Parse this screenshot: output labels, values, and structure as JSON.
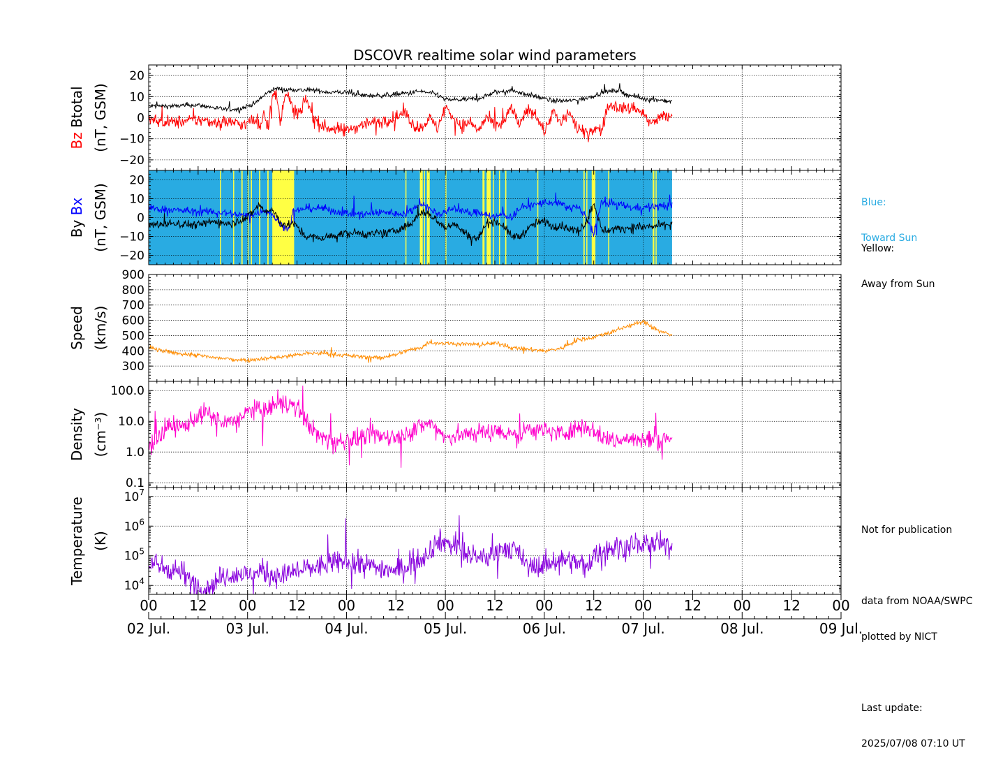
{
  "chart_data": {
    "type": "line",
    "title": "DSCOVR realtime solar wind parameters",
    "x": {
      "unit": "hours since 2025-07-02 00:00 UT",
      "range": [
        0,
        168
      ],
      "data_end": 127,
      "major_tick_labels": [
        "00",
        "12",
        "00",
        "12",
        "00",
        "12",
        "00",
        "12",
        "00",
        "12",
        "00",
        "12",
        "00",
        "12",
        "00"
      ],
      "date_labels": [
        "02 Jul.",
        "03 Jul.",
        "04 Jul.",
        "05 Jul.",
        "06 Jul.",
        "07 Jul.",
        "08 Jul.",
        "09 Jul."
      ]
    },
    "panels": [
      {
        "id": "bfield",
        "ylabel_series": [
          {
            "text": "Bz",
            "color": "#ff0000"
          },
          {
            "text": "Btotal",
            "color": "#000000"
          }
        ],
        "ylabel_unit": "(nT, GSM)",
        "scale": "linear",
        "ylim": [
          -25,
          25
        ],
        "ticks": [
          "20",
          "10",
          "0",
          "−10",
          "−20"
        ],
        "tick_values": [
          20,
          10,
          0,
          -10,
          -20
        ],
        "series": [
          {
            "name": "Btotal",
            "color": "#000000",
            "t": [
              0,
              6,
              12,
              18,
              22,
              24,
              26,
              27,
              29,
              31,
              33,
              35,
              37,
              40,
              44,
              48,
              52,
              56,
              60,
              64,
              66,
              70,
              72,
              74,
              76,
              80,
              84,
              88,
              92,
              96,
              98,
              102,
              106,
              110,
              114,
              116,
              118,
              120,
              122,
              124,
              127
            ],
            "v": [
              5.5,
              5.5,
              6,
              4,
              4,
              5.5,
              7,
              9,
              12,
              14,
              13,
              13.5,
              13,
              13,
              12,
              12,
              10.5,
              10.5,
              11,
              12,
              12.5,
              11,
              8.5,
              8.5,
              8.5,
              9,
              12,
              13,
              11,
              9,
              8,
              8,
              9,
              12,
              13,
              11,
              10,
              9,
              8.5,
              8.5,
              7.5
            ],
            "noise": 0.8
          },
          {
            "name": "Bz",
            "color": "#ff0000",
            "t": [
              0,
              4,
              8,
              12,
              16,
              20,
              22,
              24,
              25,
              26,
              27,
              28,
              29,
              30,
              31,
              32,
              33,
              34,
              35,
              36,
              37,
              38,
              40,
              42,
              44,
              48,
              52,
              56,
              60,
              62,
              64,
              66,
              68,
              70,
              72,
              74,
              76,
              78,
              80,
              82,
              84,
              86,
              88,
              90,
              92,
              94,
              96,
              98,
              100,
              102,
              104,
              106,
              108,
              110,
              111,
              112,
              114,
              116,
              118,
              120,
              122,
              124,
              127
            ],
            "v": [
              -1,
              -2,
              -2,
              -1,
              -2,
              -2,
              -3,
              -3,
              -1,
              -2,
              -4,
              3,
              -5,
              12,
              10,
              -3,
              12,
              10,
              3,
              3,
              2,
              10,
              0,
              -4,
              -5,
              -6,
              -3,
              -2,
              0,
              3,
              -3,
              -5,
              0,
              -5,
              5,
              0,
              -4,
              -2,
              -6,
              0,
              -4,
              -3,
              5,
              -4,
              4,
              2,
              -7,
              3,
              -3,
              3,
              -5,
              -8,
              -5,
              -6,
              3,
              6,
              5,
              4,
              5,
              2,
              -3,
              0,
              1
            ],
            "noise": 2.2
          }
        ]
      },
      {
        "id": "bxy",
        "ylabel_series": [
          {
            "text": "By",
            "color": "#000000"
          },
          {
            "text": "Bx",
            "color": "#0000ff"
          }
        ],
        "ylabel_unit": "(nT, GSM)",
        "scale": "linear",
        "ylim": [
          -25,
          25
        ],
        "ticks": [
          "20",
          "10",
          "0",
          "−10",
          "−20"
        ],
        "tick_values": [
          20,
          10,
          0,
          -10,
          -20
        ],
        "sector_background": {
          "toward_color": "#29abe2",
          "away_color": "#ffff44",
          "away_intervals": [
            [
              17.3,
              17.5
            ],
            [
              20.5,
              20.7
            ],
            [
              22.5,
              22.8
            ],
            [
              24.0,
              24.2
            ],
            [
              24.8,
              25.0
            ],
            [
              26.8,
              27.1
            ],
            [
              28.8,
              29.1
            ],
            [
              30.0,
              35.3
            ],
            [
              62.3,
              62.5
            ],
            [
              65.8,
              66.5
            ],
            [
              66.8,
              67.0
            ],
            [
              67.5,
              68.2
            ],
            [
              72.0,
              72.2
            ],
            [
              81.0,
              81.5
            ],
            [
              82.0,
              83.0
            ],
            [
              83.5,
              83.7
            ],
            [
              85.0,
              85.2
            ],
            [
              86.5,
              86.8
            ],
            [
              94.3,
              94.5
            ],
            [
              105.5,
              105.8
            ],
            [
              106.2,
              106.4
            ],
            [
              107.5,
              108.4
            ],
            [
              111.5,
              111.7
            ],
            [
              122.3,
              122.7
            ],
            [
              123.0,
              123.2
            ]
          ]
        },
        "series": [
          {
            "name": "Bx",
            "color": "#0000ff",
            "t": [
              0,
              6,
              12,
              16,
              20,
              24,
              26,
              28,
              30,
              32,
              34,
              35,
              38,
              42,
              46,
              50,
              54,
              58,
              60,
              62,
              64,
              66,
              68,
              70,
              72,
              74,
              76,
              78,
              80,
              82,
              84,
              86,
              88,
              90,
              92,
              94,
              96,
              98,
              100,
              102,
              104,
              106,
              108,
              110,
              114,
              118,
              122,
              127
            ],
            "v": [
              5,
              4,
              3,
              3,
              2,
              1,
              2,
              4,
              2,
              -4,
              -6,
              3,
              5,
              5,
              3,
              2,
              2,
              3,
              2,
              2,
              4,
              8,
              5,
              2,
              3,
              5,
              4,
              2,
              3,
              2,
              0,
              2,
              0,
              5,
              6,
              7,
              8,
              8,
              7,
              5,
              6,
              0,
              -8,
              8,
              7,
              5,
              6,
              6
            ],
            "noise": 1.5
          },
          {
            "name": "By",
            "color": "#000000",
            "t": [
              0,
              6,
              12,
              16,
              20,
              24,
              26,
              27,
              28,
              30,
              32,
              34,
              35,
              36,
              38,
              42,
              46,
              50,
              54,
              58,
              60,
              62,
              64,
              66,
              68,
              70,
              72,
              74,
              76,
              78,
              80,
              82,
              84,
              86,
              88,
              90,
              92,
              94,
              96,
              98,
              100,
              102,
              104,
              106,
              108,
              110,
              114,
              118,
              122,
              127
            ],
            "v": [
              -4,
              -3,
              -4,
              -2,
              -3,
              0,
              5,
              7,
              3,
              4,
              -3,
              -4,
              -3,
              -5,
              -10,
              -11,
              -9,
              -8,
              -9,
              -8,
              -7,
              -5,
              -3,
              3,
              2,
              -2,
              -5,
              -3,
              -7,
              -10,
              -11,
              -3,
              -2,
              -4,
              -10,
              -10,
              -6,
              -3,
              -2,
              -5,
              -4,
              -6,
              -7,
              -3,
              8,
              -7,
              -6,
              -5,
              -5,
              -3
            ],
            "noise": 1.6
          }
        ],
        "legend_notes": [
          {
            "label": "Blue:",
            "text": "Toward Sun",
            "color": "#29abe2"
          },
          {
            "label": "Yellow:",
            "text": "Away from Sun",
            "color": "#000000"
          }
        ]
      },
      {
        "id": "speed",
        "ylabel_series": [
          {
            "text": "Speed",
            "color": "#000000"
          }
        ],
        "ylabel_unit": "(km/s)",
        "scale": "linear",
        "ylim": [
          200,
          900
        ],
        "ticks": [
          "900",
          "800",
          "700",
          "600",
          "500",
          "400",
          "300"
        ],
        "tick_values": [
          900,
          800,
          700,
          600,
          500,
          400,
          300
        ],
        "series": [
          {
            "name": "Speed",
            "color": "#ff8c00",
            "t": [
              0,
              4,
              8,
              12,
              16,
              20,
              24,
              28,
              32,
              36,
              40,
              44,
              48,
              52,
              56,
              60,
              62,
              64,
              66,
              68,
              72,
              76,
              80,
              84,
              86,
              88,
              92,
              96,
              100,
              104,
              108,
              112,
              116,
              118,
              120,
              122,
              124,
              127
            ],
            "v": [
              420,
              395,
              380,
              370,
              355,
              345,
              340,
              350,
              360,
              375,
              385,
              380,
              370,
              360,
              355,
              375,
              395,
              410,
              420,
              455,
              450,
              445,
              440,
              450,
              440,
              420,
              410,
              400,
              415,
              470,
              490,
              520,
              560,
              575,
              590,
              560,
              530,
              500
            ],
            "noise": 10
          }
        ]
      },
      {
        "id": "density",
        "ylabel_series": [
          {
            "text": "Density",
            "color": "#000000"
          }
        ],
        "ylabel_unit": "(cm⁻³)",
        "scale": "log",
        "ylim": [
          0.07,
          200
        ],
        "ticks": [
          "100.0",
          "10.0",
          "1.0",
          "0.1"
        ],
        "tick_values": [
          100,
          10,
          1,
          0.1
        ],
        "series": [
          {
            "name": "Density",
            "color": "#ff00cc",
            "t": [
              0,
              2,
              4,
              6,
              8,
              10,
              12,
              14,
              16,
              18,
              20,
              22,
              24,
              26,
              28,
              30,
              32,
              34,
              36,
              38,
              40,
              42,
              44,
              46,
              48,
              52,
              56,
              60,
              64,
              66,
              68,
              70,
              72,
              76,
              80,
              84,
              88,
              90,
              92,
              96,
              100,
              104,
              106,
              108,
              110,
              112,
              116,
              120,
              124,
              127
            ],
            "v": [
              1.5,
              3,
              5,
              8,
              6,
              10,
              15,
              20,
              12,
              8,
              10,
              12,
              20,
              25,
              20,
              30,
              40,
              35,
              25,
              12,
              5,
              3,
              2.5,
              2,
              2.5,
              3,
              3.5,
              3,
              5,
              7,
              8,
              6,
              3,
              3.5,
              4.5,
              4.5,
              4.5,
              3,
              6,
              5,
              4,
              6,
              7,
              5,
              3,
              2.5,
              2.5,
              2.5,
              2.5,
              3
            ],
            "noise": 0.22
          }
        ]
      },
      {
        "id": "temperature",
        "ylabel_series": [
          {
            "text": "Temperature",
            "color": "#000000"
          }
        ],
        "ylabel_unit": "(K)",
        "scale": "log",
        "ylim": [
          5000,
          20000000
        ],
        "ticks": [
          "10^7",
          "10^6",
          "10^5",
          "10^4"
        ],
        "tick_values": [
          10000000,
          1000000,
          100000,
          10000
        ],
        "series": [
          {
            "name": "Temperature",
            "color": "#8800dd",
            "t": [
              0,
              4,
              8,
              10,
              12,
              14,
              16,
              18,
              20,
              24,
              28,
              32,
              36,
              40,
              44,
              48,
              52,
              56,
              60,
              62,
              64,
              66,
              68,
              70,
              72,
              76,
              80,
              84,
              86,
              88,
              90,
              92,
              96,
              100,
              104,
              106,
              108,
              112,
              116,
              120,
              124,
              127
            ],
            "v": [
              50000,
              40000,
              30000,
              15000,
              10000,
              8000,
              12000,
              20000,
              25000,
              22000,
              30000,
              20000,
              30000,
              40000,
              50000,
              70000,
              50000,
              40000,
              30000,
              40000,
              60000,
              80000,
              150000,
              300000,
              300000,
              150000,
              70000,
              120000,
              200000,
              180000,
              100000,
              40000,
              50000,
              80000,
              60000,
              40000,
              100000,
              200000,
              200000,
              250000,
              250000,
              160000
            ],
            "noise": 0.28
          }
        ]
      }
    ]
  },
  "notes": {
    "not_for_publication": "Not for publication",
    "data_source_1": "data from NOAA/SWPC",
    "data_source_2": "plotted by NICT",
    "last_update_label": "Last update:",
    "last_update_value": "2025/07/08 07:10 UT"
  }
}
